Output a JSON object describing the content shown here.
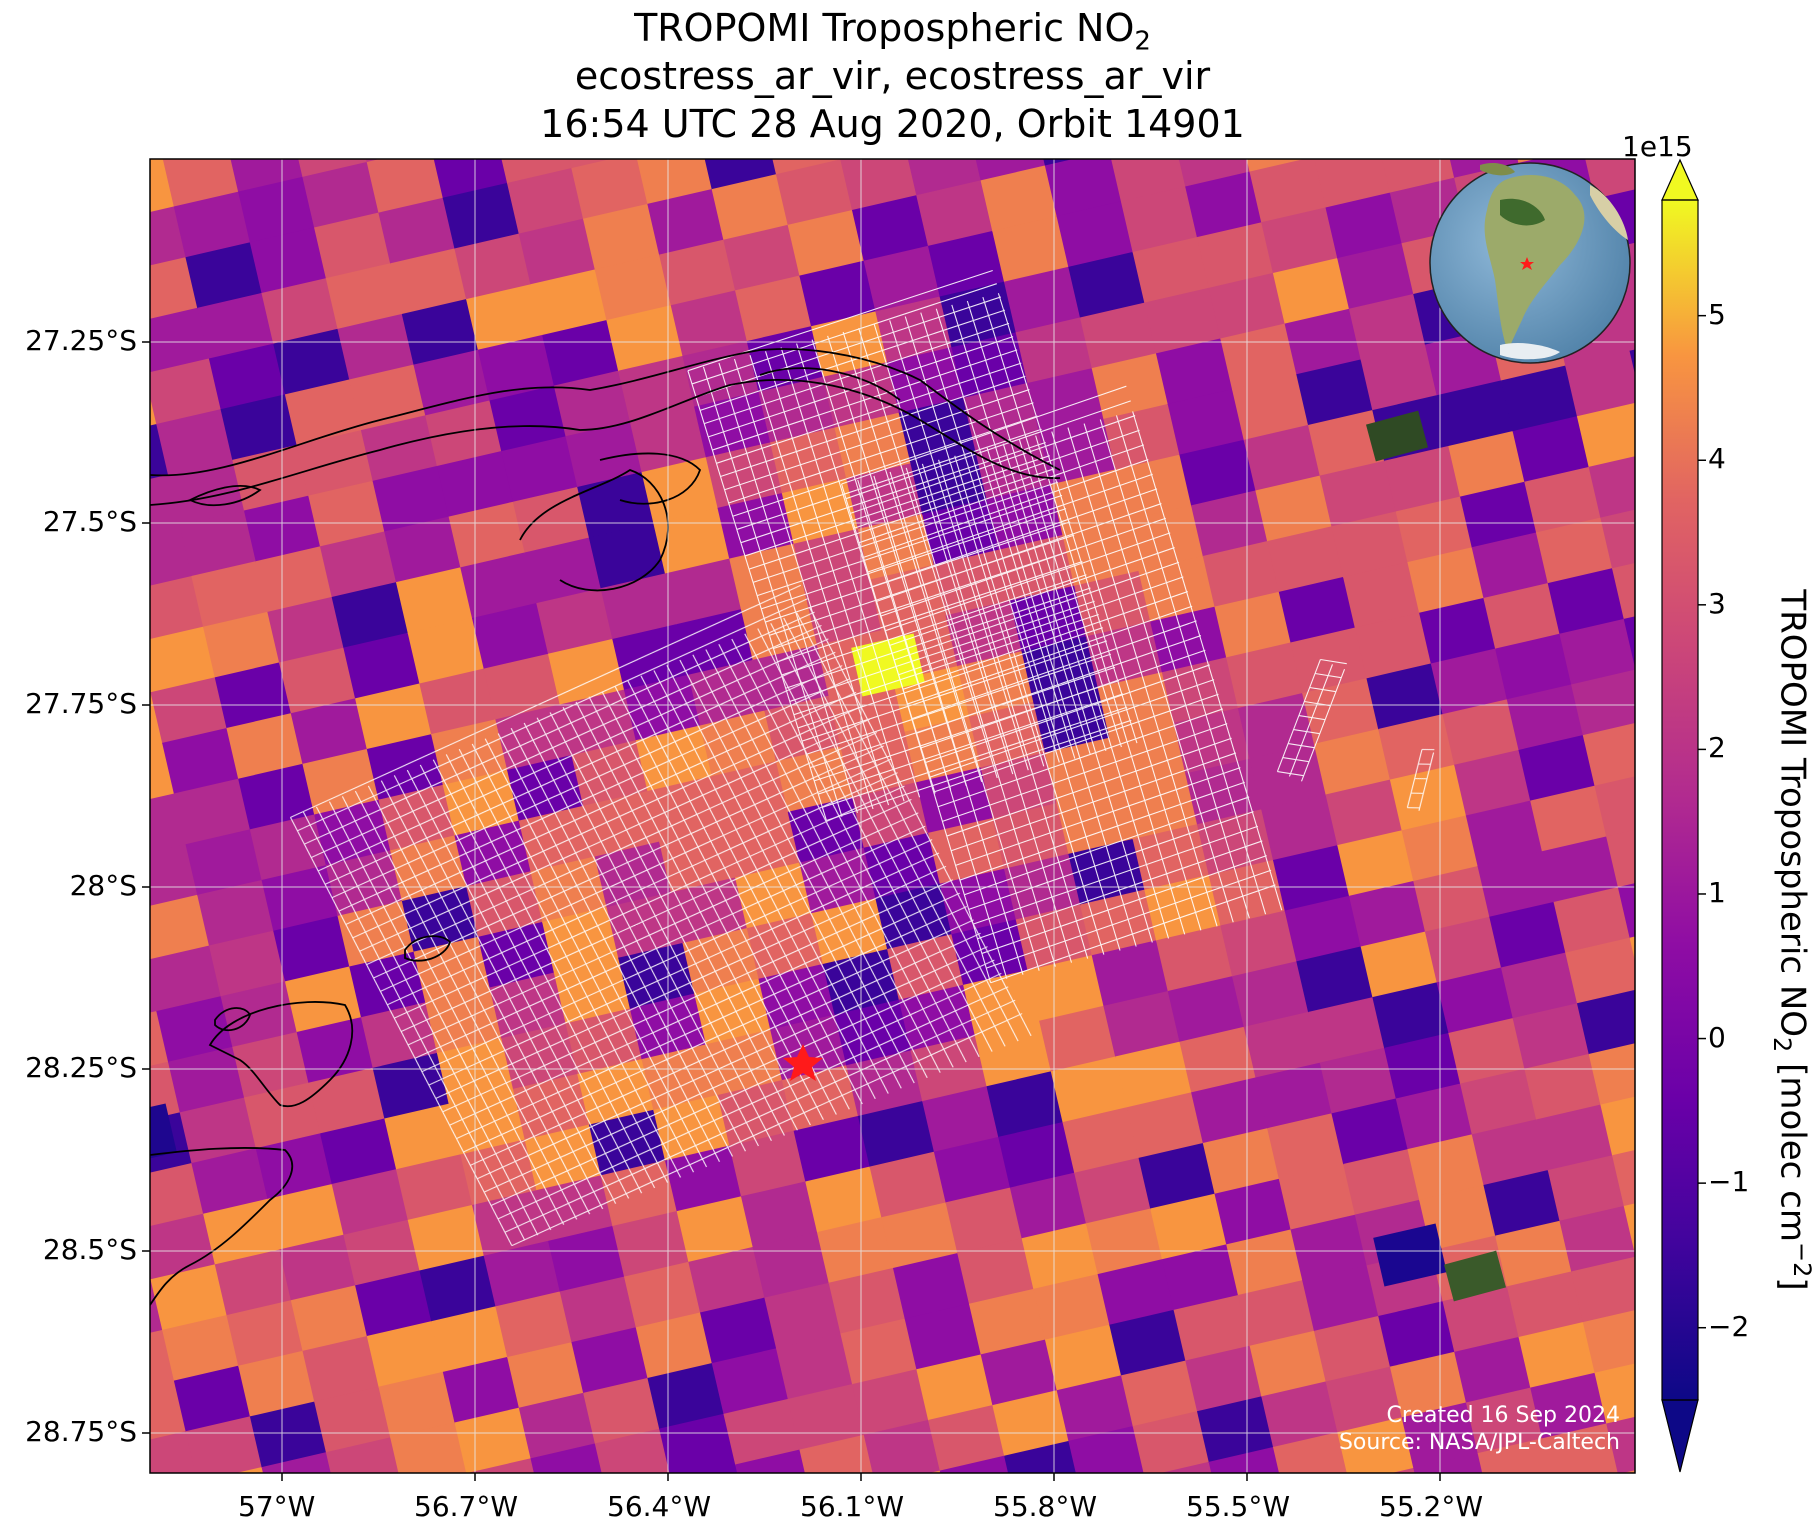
{
  "title": {
    "line1_prefix": "TROPOMI Tropospheric NO",
    "line1_sub": "2",
    "line2": "ecostress_ar_vir, ecostress_ar_vir",
    "line3": "16:54 UTC 28 Aug 2020, Orbit 14901"
  },
  "map": {
    "lon_ticks": [
      "57°W",
      "56.7°W",
      "56.4°W",
      "56.1°W",
      "55.8°W",
      "55.5°W",
      "55.2°W"
    ],
    "lat_ticks": [
      "27.25°S",
      "27.5°S",
      "27.75°S",
      "28°S",
      "28.25°S",
      "28.5°S",
      "28.75°S"
    ],
    "background_color": "#c63c8f",
    "site_marker": "red-star-icon",
    "inset_globe": "globe-south-america-icon"
  },
  "colorbar": {
    "exponent": "1e15",
    "ticks": [
      "5",
      "4",
      "3",
      "2",
      "1",
      "0",
      "−1",
      "−2"
    ],
    "label_prefix": "TROPOMI Tropospheric NO",
    "label_sub": "2",
    "label_suffix": " [molec cm",
    "label_sup": "−2",
    "label_close": "]",
    "colormap": "plasma",
    "range": [
      -2.5,
      5.8
    ],
    "extend": "both"
  },
  "credits": {
    "created": "Created 16 Sep 2024",
    "source": "Source: NASA/JPL-Caltech"
  }
}
